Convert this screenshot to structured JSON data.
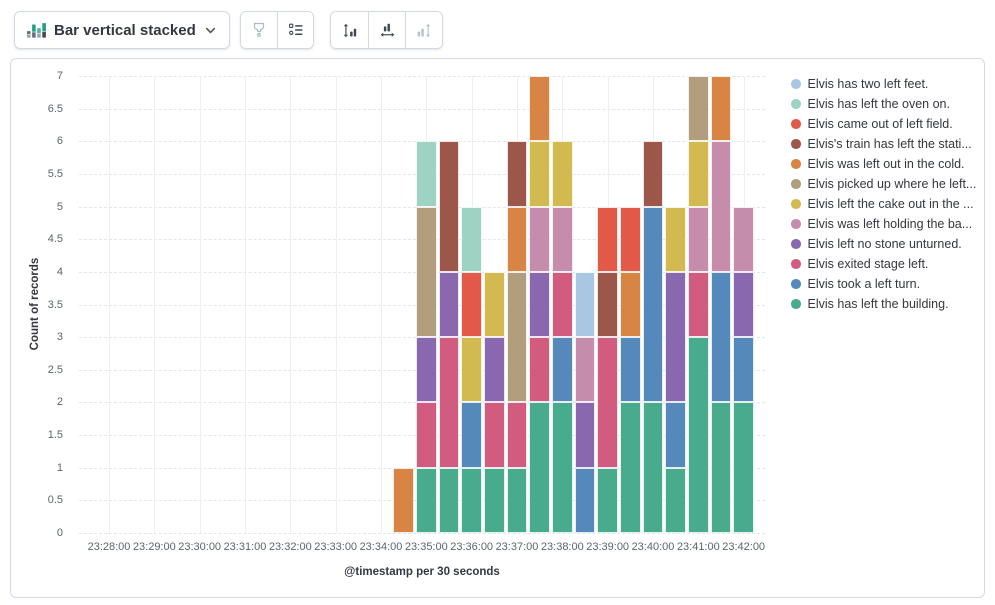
{
  "toolbar": {
    "chart_type": {
      "label": "Bar vertical stacked"
    },
    "visual_options_button": {
      "icon": "brush-icon",
      "disabled": true
    },
    "legend_button": {
      "icon": "list-icon",
      "disabled": false
    },
    "left_axis_button": {
      "icon": "vertical-axis-icon",
      "disabled": false
    },
    "bottom_axis_button": {
      "icon": "horizontal-axis-icon",
      "disabled": false
    },
    "right_axis_button": {
      "icon": "right-axis-icon",
      "disabled": true
    }
  },
  "chart_data": {
    "type": "bar",
    "mode": "stacked",
    "title": "",
    "ylabel": "Count of records",
    "xlabel": "@timestamp per 30 seconds",
    "ylim": [
      0,
      7
    ],
    "yticks": [
      0,
      0.5,
      1,
      1.5,
      2,
      2.5,
      3,
      3.5,
      4,
      4.5,
      5,
      5.5,
      6,
      6.5,
      7
    ],
    "x_tick_labels": [
      "23:28:00",
      "23:29:00",
      "23:30:00",
      "23:31:00",
      "23:32:00",
      "23:33:00",
      "23:34:00",
      "23:35:00",
      "23:36:00",
      "23:37:00",
      "23:38:00",
      "23:39:00",
      "23:40:00",
      "23:41:00",
      "23:42:00"
    ],
    "bucket_interval": "30 seconds",
    "buckets": [
      "23:34:30",
      "23:35:00",
      "23:35:30",
      "23:36:00",
      "23:36:30",
      "23:37:00",
      "23:37:30",
      "23:38:00",
      "23:38:30",
      "23:39:00",
      "23:39:30",
      "23:40:00",
      "23:40:30",
      "23:41:00",
      "23:41:30",
      "23:42:00"
    ],
    "series": [
      {
        "label": "Elvis has left the building.",
        "color": "#48AB8E",
        "values": [
          0,
          1,
          1,
          1,
          1,
          1,
          2,
          2,
          0,
          1,
          2,
          2,
          1,
          3,
          2,
          2
        ]
      },
      {
        "label": "Elvis took a left turn.",
        "color": "#5588BB",
        "values": [
          0,
          0,
          0,
          1,
          0,
          0,
          0,
          1,
          1,
          0,
          1,
          3,
          1,
          0,
          2,
          1
        ]
      },
      {
        "label": "Elvis exited stage left.",
        "color": "#D15C80",
        "values": [
          0,
          1,
          2,
          0,
          1,
          1,
          1,
          1,
          0,
          2,
          0,
          0,
          0,
          1,
          0,
          0
        ]
      },
      {
        "label": "Elvis left no stone unturned.",
        "color": "#8968B0",
        "values": [
          0,
          1,
          1,
          0,
          1,
          0,
          1,
          0,
          1,
          0,
          0,
          0,
          2,
          0,
          0,
          1
        ]
      },
      {
        "label": "Elvis was left holding the ba...",
        "color": "#C68CAC",
        "values": [
          0,
          0,
          0,
          0,
          0,
          0,
          1,
          1,
          1,
          0,
          0,
          0,
          0,
          1,
          2,
          1
        ]
      },
      {
        "label": "Elvis left the cake out in the ...",
        "color": "#D2BA51",
        "values": [
          0,
          0,
          0,
          1,
          1,
          0,
          1,
          1,
          0,
          0,
          0,
          0,
          1,
          1,
          0,
          0
        ]
      },
      {
        "label": "Elvis picked up where he left...",
        "color": "#B29D7C",
        "values": [
          0,
          2,
          0,
          0,
          0,
          2,
          0,
          0,
          0,
          0,
          0,
          0,
          0,
          1,
          0,
          0
        ]
      },
      {
        "label": "Elvis was left out in the cold.",
        "color": "#D88445",
        "values": [
          1,
          0,
          0,
          0,
          0,
          1,
          1,
          0,
          0,
          0,
          1,
          0,
          0,
          0,
          1,
          0
        ]
      },
      {
        "label": "Elvis's train has left the stati...",
        "color": "#9D574A",
        "values": [
          0,
          0,
          2,
          0,
          0,
          1,
          0,
          0,
          0,
          1,
          0,
          1,
          0,
          0,
          0,
          0
        ]
      },
      {
        "label": "Elvis came out of left field.",
        "color": "#E25A47",
        "values": [
          0,
          0,
          0,
          1,
          0,
          0,
          0,
          0,
          0,
          1,
          1,
          0,
          0,
          0,
          0,
          0
        ]
      },
      {
        "label": "Elvis has left the oven on.",
        "color": "#9ED3C4",
        "values": [
          0,
          1,
          0,
          1,
          0,
          0,
          0,
          0,
          0,
          0,
          0,
          0,
          0,
          0,
          0,
          0
        ]
      },
      {
        "label": "Elvis has two left feet.",
        "color": "#A9C7E3",
        "values": [
          0,
          0,
          0,
          0,
          0,
          0,
          0,
          0,
          1,
          0,
          0,
          0,
          0,
          0,
          0,
          0
        ]
      }
    ],
    "legend": {
      "position": "right",
      "items": [
        {
          "label": "Elvis has two left feet.",
          "color": "#A9C7E3"
        },
        {
          "label": "Elvis has left the oven on.",
          "color": "#9ED3C4"
        },
        {
          "label": "Elvis came out of left field.",
          "color": "#E25A47"
        },
        {
          "label": "Elvis's train has left the stati...",
          "color": "#9D574A"
        },
        {
          "label": "Elvis was left out in the cold.",
          "color": "#D88445"
        },
        {
          "label": "Elvis picked up where he left...",
          "color": "#B29D7C"
        },
        {
          "label": "Elvis left the cake out in the ...",
          "color": "#D2BA51"
        },
        {
          "label": "Elvis was left holding the ba...",
          "color": "#C68CAC"
        },
        {
          "label": "Elvis left no stone unturned.",
          "color": "#8968B0"
        },
        {
          "label": "Elvis exited stage left.",
          "color": "#D15C80"
        },
        {
          "label": "Elvis took a left turn.",
          "color": "#5588BB"
        },
        {
          "label": "Elvis has left the building.",
          "color": "#48AB8E"
        }
      ]
    }
  }
}
